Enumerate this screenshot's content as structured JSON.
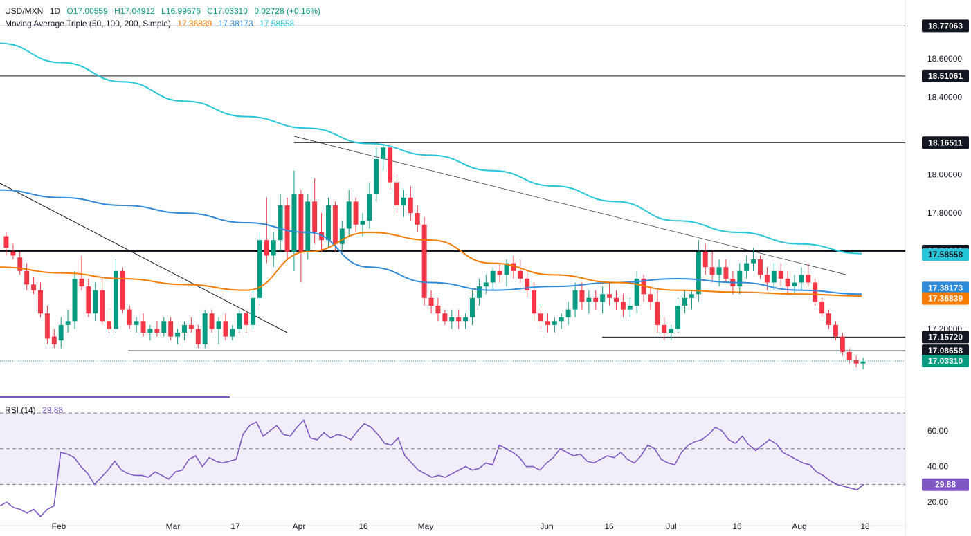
{
  "header": {
    "symbol": "USD/MXN",
    "timeframe": "1D",
    "open": "O17.00559",
    "high": "H17.04912",
    "low": "L16.99676",
    "close": "C17.03310",
    "change": "0.02728 (+0.16%)"
  },
  "indicators": {
    "ma_label": "Moving Average Triple (50, 100, 200, Simple)",
    "ma50_value": "17.36839",
    "ma100_value": "17.38173",
    "ma200_value": "17.58558",
    "rsi_label": "RSI (14)",
    "rsi_value": "29.88"
  },
  "colors": {
    "up": "#089981",
    "down": "#f23645",
    "ma50": "#f57c00",
    "ma100": "#2f8ad8",
    "ma200": "#26c6da",
    "rsi": "#7e57c2"
  },
  "chart_data": {
    "type": "candlestick",
    "price_axis": {
      "range": [
        16.94,
        18.84
      ],
      "ticks": [
        "18.60000",
        "18.40000",
        "18.00000",
        "17.80000",
        "17.20000"
      ],
      "tick_values": [
        18.6,
        18.4,
        18.0,
        17.8,
        17.2
      ]
    },
    "x_axis": {
      "ticks": [
        "Feb",
        "Mar",
        "17",
        "Apr",
        "16",
        "May",
        "Jun",
        "16",
        "Jul",
        "16",
        "Aug",
        "18"
      ]
    },
    "horizontal_levels": [
      {
        "label": "18.77063",
        "value": 18.77063
      },
      {
        "label": "18.51061",
        "value": 18.51061
      },
      {
        "label": "18.16511",
        "value": 18.16511
      },
      {
        "label": "17.60310",
        "value": 17.6031
      },
      {
        "label": "17.15720",
        "value": 17.1572
      },
      {
        "label": "17.08658",
        "value": 17.08658
      }
    ],
    "price_labels": [
      {
        "label": "17.58558",
        "series": "ma200"
      },
      {
        "label": "17.38173",
        "series": "ma100"
      },
      {
        "label": "17.36839",
        "series": "ma50"
      },
      {
        "label": "17.03310",
        "series": "close"
      }
    ],
    "ohlc_sample": [
      [
        17.68,
        17.7,
        17.58,
        17.62
      ],
      [
        17.6,
        17.64,
        17.56,
        17.58
      ],
      [
        17.57,
        17.6,
        17.48,
        17.5
      ],
      [
        17.5,
        17.54,
        17.4,
        17.43
      ],
      [
        17.43,
        17.47,
        17.38,
        17.4
      ],
      [
        17.4,
        17.44,
        17.26,
        17.28
      ],
      [
        17.28,
        17.32,
        17.12,
        17.15
      ],
      [
        17.16,
        17.2,
        17.1,
        17.12
      ],
      [
        17.14,
        17.26,
        17.1,
        17.22
      ],
      [
        17.22,
        17.3,
        17.18,
        17.24
      ],
      [
        17.24,
        17.5,
        17.2,
        17.46
      ],
      [
        17.46,
        17.58,
        17.4,
        17.42
      ],
      [
        17.42,
        17.46,
        17.26,
        17.28
      ],
      [
        17.28,
        17.44,
        17.24,
        17.4
      ],
      [
        17.4,
        17.46,
        17.22,
        17.24
      ],
      [
        17.24,
        17.3,
        17.18,
        17.2
      ],
      [
        17.2,
        17.56,
        17.18,
        17.5
      ],
      [
        17.5,
        17.52,
        17.28,
        17.3
      ],
      [
        17.3,
        17.32,
        17.2,
        17.22
      ],
      [
        17.22,
        17.26,
        17.18,
        17.24
      ],
      [
        17.24,
        17.28,
        17.16,
        17.18
      ],
      [
        17.18,
        17.22,
        17.14,
        17.2
      ],
      [
        17.2,
        17.24,
        17.16,
        17.18
      ],
      [
        17.18,
        17.26,
        17.16,
        17.24
      ],
      [
        17.24,
        17.26,
        17.14,
        17.16
      ],
      [
        17.16,
        17.2,
        17.12,
        17.18
      ],
      [
        17.18,
        17.24,
        17.14,
        17.22
      ],
      [
        17.22,
        17.26,
        17.18,
        17.2
      ],
      [
        17.2,
        17.22,
        17.1,
        17.12
      ],
      [
        17.12,
        17.3,
        17.1,
        17.28
      ],
      [
        17.28,
        17.3,
        17.18,
        17.2
      ],
      [
        17.2,
        17.26,
        17.12,
        17.24
      ],
      [
        17.24,
        17.28,
        17.14,
        17.16
      ],
      [
        17.16,
        17.22,
        17.14,
        17.2
      ],
      [
        17.2,
        17.3,
        17.18,
        17.28
      ],
      [
        17.28,
        17.3,
        17.18,
        17.22
      ],
      [
        17.22,
        17.4,
        17.2,
        17.36
      ],
      [
        17.36,
        17.7,
        17.32,
        17.66
      ],
      [
        17.66,
        17.88,
        17.54,
        17.58
      ],
      [
        17.58,
        17.7,
        17.52,
        17.66
      ],
      [
        17.66,
        17.9,
        17.6,
        17.84
      ],
      [
        17.84,
        17.88,
        17.56,
        17.6
      ],
      [
        17.6,
        18.02,
        17.5,
        17.9
      ],
      [
        17.9,
        17.92,
        17.44,
        17.6
      ],
      [
        17.6,
        17.9,
        17.56,
        17.86
      ],
      [
        17.86,
        17.98,
        17.64,
        17.7
      ],
      [
        17.7,
        17.8,
        17.6,
        17.66
      ],
      [
        17.66,
        17.88,
        17.62,
        17.84
      ],
      [
        17.84,
        17.86,
        17.6,
        17.64
      ],
      [
        17.64,
        17.76,
        17.6,
        17.72
      ],
      [
        17.72,
        17.92,
        17.68,
        17.86
      ],
      [
        17.86,
        17.88,
        17.7,
        17.74
      ],
      [
        17.74,
        17.8,
        17.68,
        17.76
      ],
      [
        17.76,
        17.96,
        17.72,
        17.9
      ],
      [
        17.9,
        18.14,
        17.86,
        18.08
      ],
      [
        18.08,
        18.16,
        18.02,
        18.14
      ],
      [
        18.14,
        18.16,
        17.92,
        17.96
      ],
      [
        17.96,
        18.0,
        17.8,
        17.84
      ],
      [
        17.84,
        17.92,
        17.78,
        17.88
      ],
      [
        17.88,
        17.94,
        17.76,
        17.8
      ],
      [
        17.8,
        17.84,
        17.7,
        17.74
      ],
      [
        17.74,
        17.78,
        17.32,
        17.36
      ],
      [
        17.36,
        17.4,
        17.28,
        17.32
      ],
      [
        17.32,
        17.36,
        17.24,
        17.28
      ],
      [
        17.28,
        17.3,
        17.22,
        17.24
      ],
      [
        17.24,
        17.3,
        17.2,
        17.26
      ],
      [
        17.26,
        17.3,
        17.2,
        17.24
      ],
      [
        17.24,
        17.28,
        17.2,
        17.26
      ],
      [
        17.26,
        17.4,
        17.22,
        17.36
      ],
      [
        17.36,
        17.46,
        17.32,
        17.42
      ],
      [
        17.42,
        17.48,
        17.38,
        17.44
      ],
      [
        17.44,
        17.52,
        17.4,
        17.5
      ],
      [
        17.5,
        17.54,
        17.44,
        17.48
      ],
      [
        17.48,
        17.56,
        17.42,
        17.54
      ],
      [
        17.54,
        17.58,
        17.46,
        17.5
      ],
      [
        17.5,
        17.56,
        17.44,
        17.46
      ],
      [
        17.46,
        17.5,
        17.36,
        17.4
      ],
      [
        17.4,
        17.44,
        17.24,
        17.28
      ],
      [
        17.28,
        17.32,
        17.2,
        17.24
      ],
      [
        17.24,
        17.28,
        17.18,
        17.22
      ],
      [
        17.22,
        17.26,
        17.18,
        17.24
      ],
      [
        17.24,
        17.28,
        17.2,
        17.26
      ],
      [
        17.26,
        17.34,
        17.22,
        17.3
      ],
      [
        17.3,
        17.44,
        17.26,
        17.4
      ],
      [
        17.4,
        17.44,
        17.3,
        17.34
      ],
      [
        17.34,
        17.4,
        17.28,
        17.36
      ],
      [
        17.36,
        17.4,
        17.3,
        17.34
      ],
      [
        17.34,
        17.42,
        17.28,
        17.38
      ],
      [
        17.38,
        17.44,
        17.32,
        17.36
      ],
      [
        17.36,
        17.4,
        17.3,
        17.34
      ],
      [
        17.34,
        17.38,
        17.26,
        17.3
      ],
      [
        17.3,
        17.36,
        17.26,
        17.32
      ],
      [
        17.32,
        17.5,
        17.28,
        17.46
      ],
      [
        17.46,
        17.48,
        17.34,
        17.38
      ],
      [
        17.38,
        17.42,
        17.3,
        17.34
      ],
      [
        17.34,
        17.4,
        17.18,
        17.22
      ],
      [
        17.22,
        17.26,
        17.14,
        17.18
      ],
      [
        17.18,
        17.22,
        17.14,
        17.2
      ],
      [
        17.2,
        17.36,
        17.18,
        17.32
      ],
      [
        17.32,
        17.4,
        17.28,
        17.36
      ],
      [
        17.36,
        17.4,
        17.3,
        17.38
      ],
      [
        17.38,
        17.66,
        17.34,
        17.6
      ],
      [
        17.6,
        17.64,
        17.48,
        17.52
      ],
      [
        17.52,
        17.6,
        17.44,
        17.48
      ],
      [
        17.48,
        17.56,
        17.42,
        17.52
      ],
      [
        17.52,
        17.56,
        17.44,
        17.46
      ],
      [
        17.46,
        17.5,
        17.38,
        17.42
      ],
      [
        17.42,
        17.54,
        17.38,
        17.5
      ],
      [
        17.5,
        17.58,
        17.46,
        17.54
      ],
      [
        17.54,
        17.62,
        17.5,
        17.56
      ],
      [
        17.56,
        17.58,
        17.46,
        17.48
      ],
      [
        17.48,
        17.52,
        17.4,
        17.44
      ],
      [
        17.44,
        17.54,
        17.4,
        17.5
      ],
      [
        17.5,
        17.54,
        17.42,
        17.46
      ],
      [
        17.46,
        17.5,
        17.38,
        17.42
      ],
      [
        17.42,
        17.48,
        17.38,
        17.44
      ],
      [
        17.44,
        17.52,
        17.4,
        17.48
      ],
      [
        17.48,
        17.54,
        17.42,
        17.44
      ],
      [
        17.44,
        17.46,
        17.32,
        17.34
      ],
      [
        17.34,
        17.36,
        17.26,
        17.28
      ],
      [
        17.28,
        17.3,
        17.2,
        17.22
      ],
      [
        17.22,
        17.24,
        17.14,
        17.16
      ],
      [
        17.16,
        17.18,
        17.06,
        17.08
      ],
      [
        17.08,
        17.1,
        17.02,
        17.04
      ],
      [
        17.04,
        17.06,
        17.0,
        17.02
      ],
      [
        17.02,
        17.05,
        16.99,
        17.03
      ]
    ],
    "ma50": [
      17.52,
      17.49,
      17.46,
      17.43,
      17.4,
      17.6,
      17.7,
      17.66,
      17.54,
      17.48,
      17.44,
      17.4,
      17.39,
      17.38,
      17.37
    ],
    "ma100": [
      17.92,
      17.88,
      17.84,
      17.8,
      17.75,
      17.7,
      17.52,
      17.44,
      17.4,
      17.42,
      17.44,
      17.46,
      17.44,
      17.4,
      17.38
    ],
    "ma200": [
      18.68,
      18.58,
      18.48,
      18.38,
      18.3,
      18.24,
      18.16,
      18.1,
      18.02,
      17.94,
      17.86,
      17.76,
      17.7,
      17.64,
      17.59
    ],
    "rsi": {
      "range": [
        10,
        72
      ],
      "ticks": [
        "60.00",
        "40.00",
        "20.00"
      ],
      "tick_values": [
        60,
        40,
        20
      ],
      "bands": [
        70,
        50,
        30
      ],
      "values": [
        18,
        20,
        17,
        16,
        14,
        16,
        12,
        16,
        18,
        48,
        47,
        45,
        40,
        36,
        30,
        34,
        38,
        43,
        38,
        36,
        35,
        35,
        34,
        37,
        35,
        33,
        37,
        38,
        44,
        46,
        40,
        45,
        43,
        42,
        43,
        44,
        58,
        63,
        65,
        57,
        60,
        63,
        58,
        57,
        62,
        66,
        56,
        55,
        59,
        56,
        58,
        57,
        55,
        60,
        64,
        62,
        58,
        53,
        52,
        56,
        46,
        42,
        38,
        36,
        34,
        35,
        34,
        36,
        38,
        40,
        38,
        39,
        42,
        41,
        52,
        50,
        48,
        45,
        40,
        40,
        38,
        42,
        45,
        50,
        48,
        46,
        47,
        43,
        42,
        44,
        46,
        45,
        48,
        44,
        42,
        46,
        52,
        50,
        44,
        42,
        41,
        48,
        52,
        54,
        55,
        58,
        62,
        60,
        55,
        53,
        57,
        52,
        49,
        52,
        55,
        53,
        48,
        46,
        44,
        42,
        41,
        37,
        35,
        32,
        30,
        29,
        28,
        27,
        30
      ]
    }
  }
}
